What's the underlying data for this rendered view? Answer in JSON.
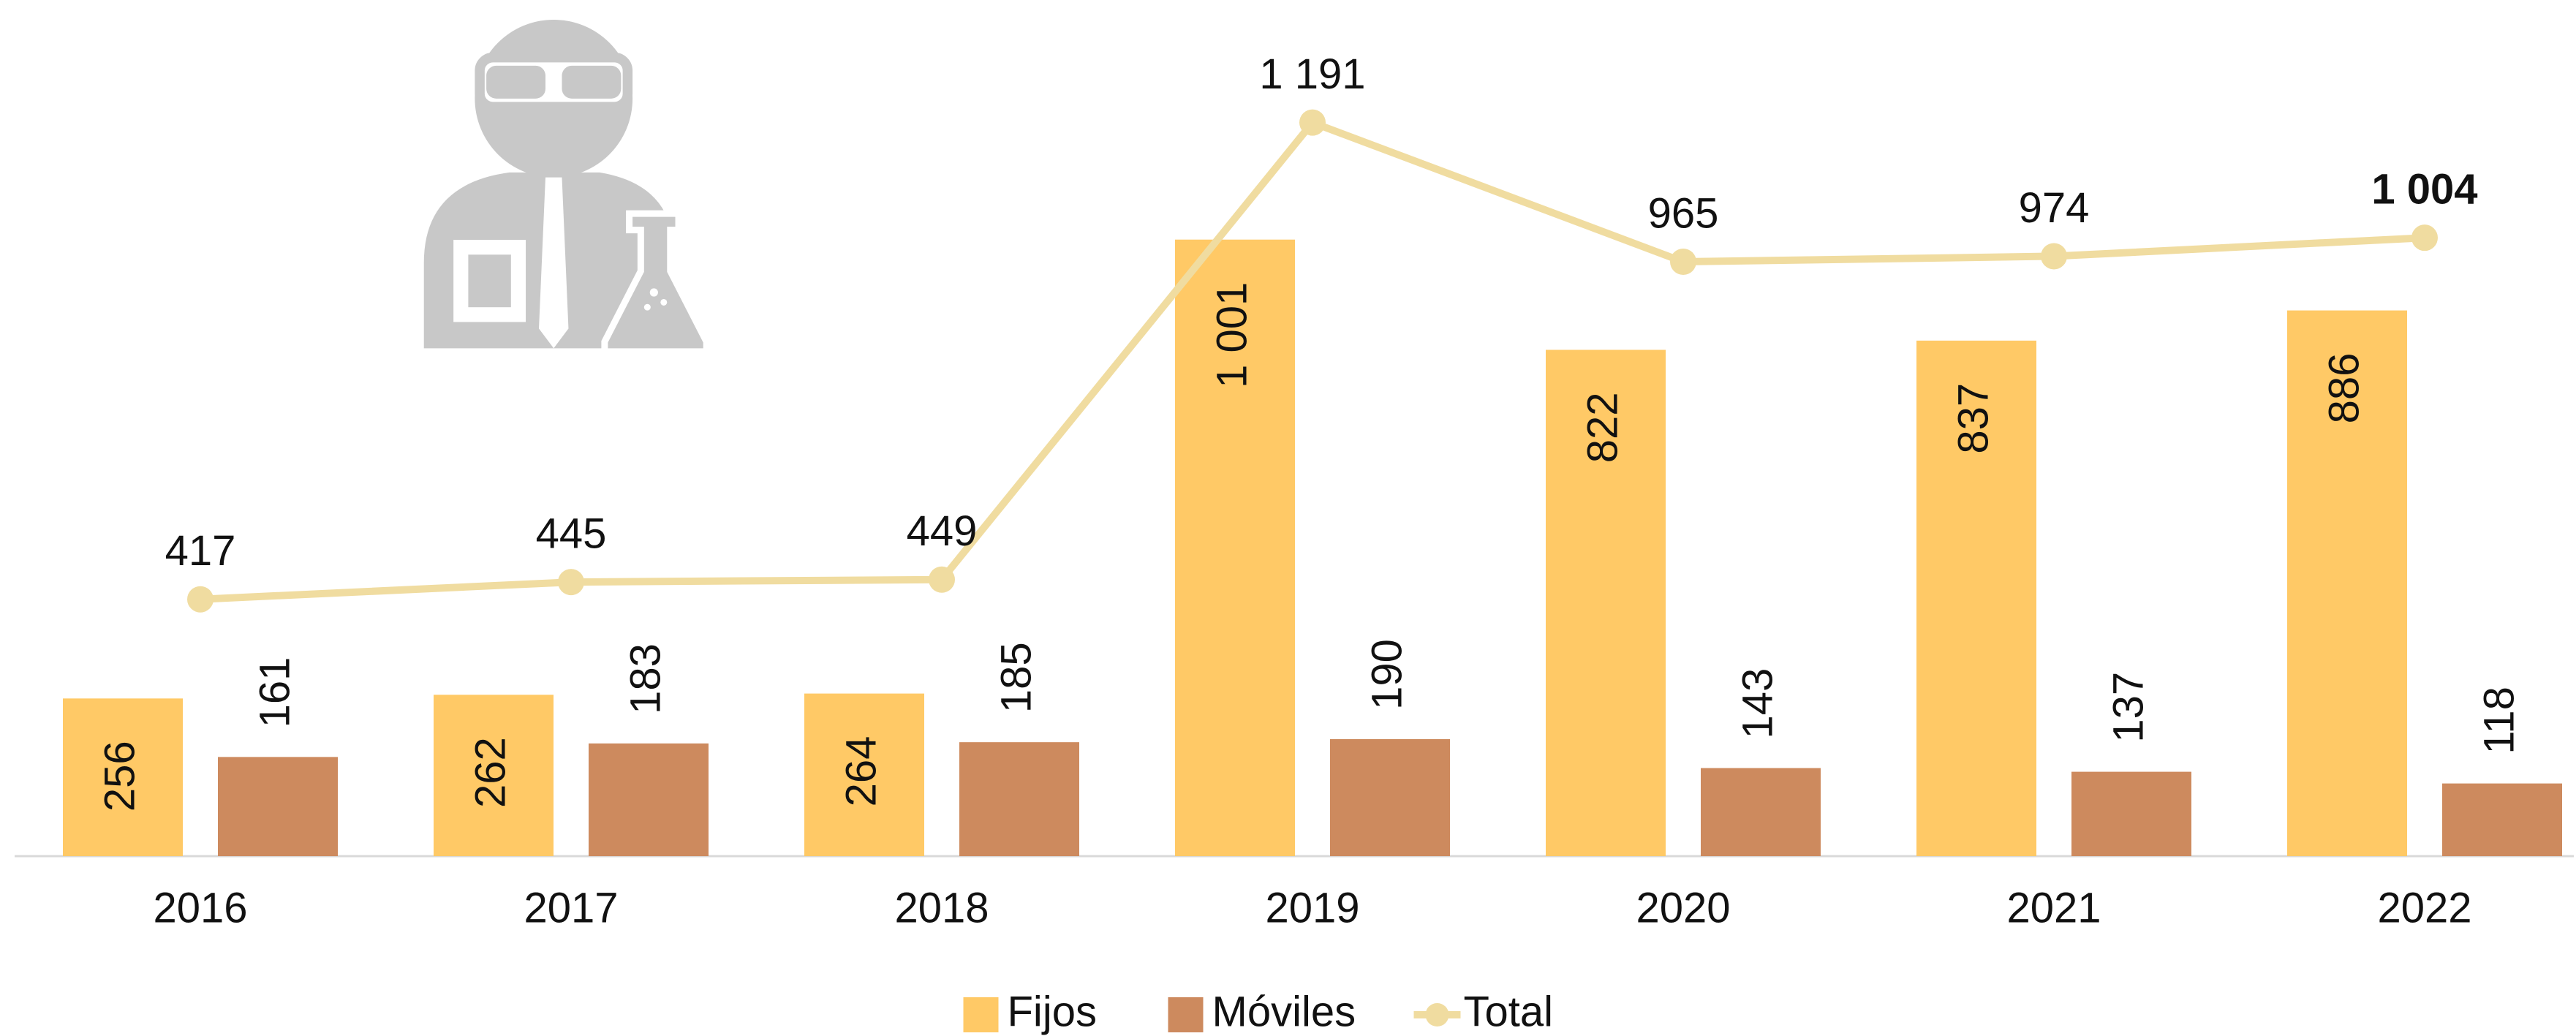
{
  "chart_data": {
    "type": "bar_line",
    "categories": [
      "2016",
      "2017",
      "2018",
      "2019",
      "2020",
      "2021",
      "2022"
    ],
    "series": [
      {
        "name": "Fijos",
        "type": "bar",
        "color": "#FFC966",
        "values": [
          256,
          262,
          264,
          1001,
          822,
          837,
          886
        ],
        "value_labels": [
          "256",
          "262",
          "264",
          "1 001",
          "822",
          "837",
          "886"
        ]
      },
      {
        "name": "Móviles",
        "type": "bar",
        "color": "#CD8A5E",
        "values": [
          161,
          183,
          185,
          190,
          143,
          137,
          118
        ],
        "value_labels": [
          "161",
          "183",
          "185",
          "190",
          "143",
          "137",
          "118"
        ]
      },
      {
        "name": "Total",
        "type": "line",
        "color": "#F0DCA0",
        "values": [
          417,
          445,
          449,
          1191,
          965,
          974,
          1004
        ],
        "value_labels": [
          "417",
          "445",
          "449",
          "1 191",
          "965",
          "974",
          "1 004"
        ]
      }
    ],
    "ylim": [
      0,
      1390
    ],
    "legend": "bottom"
  }
}
